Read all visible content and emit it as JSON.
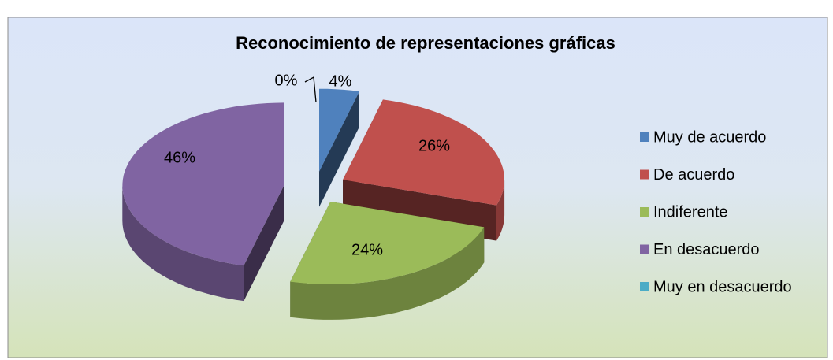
{
  "chart_data": {
    "type": "pie",
    "title": "Reconocimiento de representaciones gráficas",
    "categories": [
      "Muy de acuerdo",
      "De acuerdo",
      "Indiferente",
      "En desacuerdo",
      "Muy en desacuerdo"
    ],
    "values": [
      4,
      26,
      24,
      46,
      0
    ],
    "value_labels": [
      "4%",
      "26%",
      "24%",
      "46%",
      "0%"
    ],
    "colors": [
      "#4f81bd",
      "#c0504d",
      "#9bbb59",
      "#8064a2",
      "#4bacc6"
    ],
    "legend": "right"
  }
}
